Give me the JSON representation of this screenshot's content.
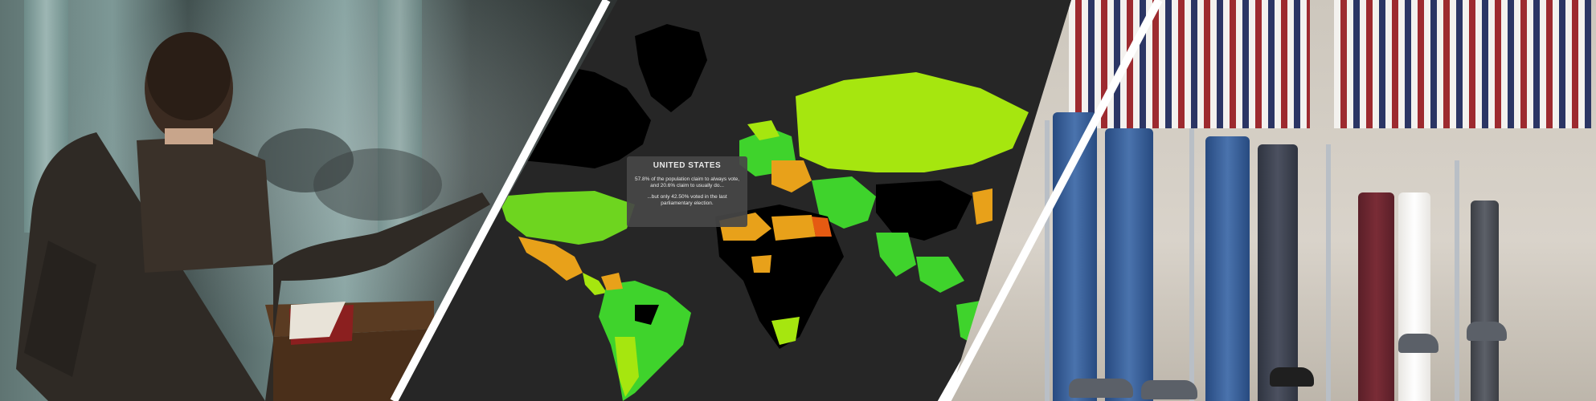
{
  "panels": {
    "left": {
      "scene": "speaker-at-podium-photo"
    },
    "middle": {
      "scene": "world-map-voter-turnout"
    },
    "right": {
      "scene": "voting-booths-photo"
    }
  },
  "tooltip": {
    "title": "UNITED STATES",
    "line1": "57.8% of the population claim to always vote, and 20.6% claim to usually do...",
    "line2": "...but only 42.50% voted in the last parliamentary election."
  },
  "colors": {
    "map_background": "#262626",
    "divider": "#ffffff",
    "high": "#a6e60f",
    "mid": "#3fd32c",
    "low_orange": "#e8a11a",
    "very_low": "#e55a12",
    "no_data": "#000000"
  }
}
